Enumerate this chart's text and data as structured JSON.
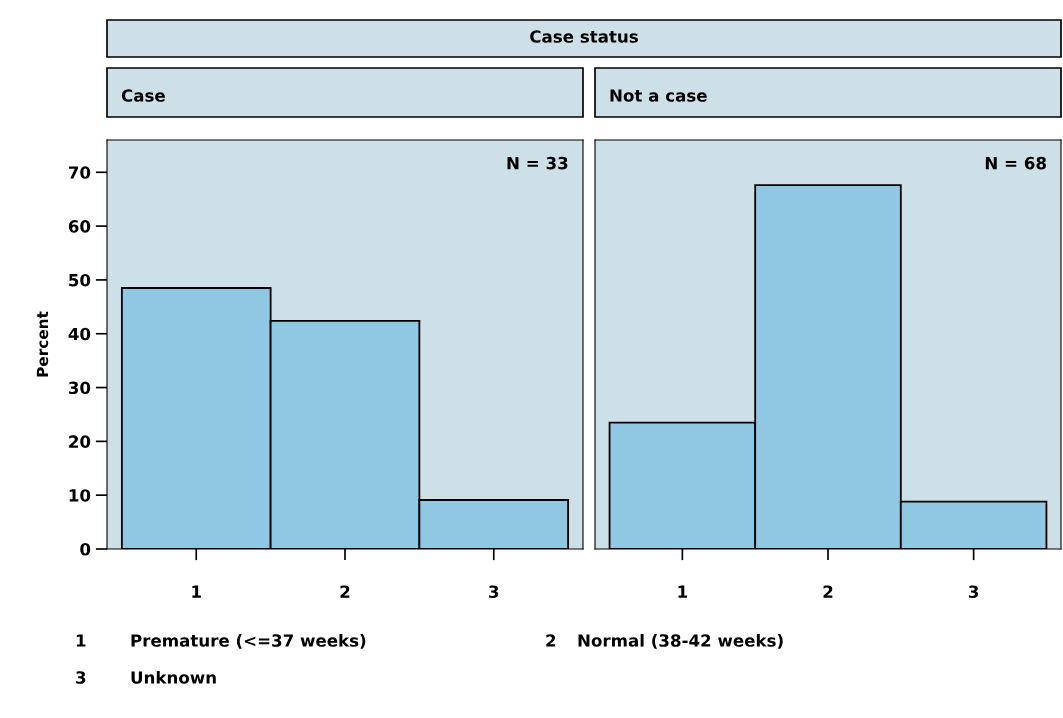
{
  "chart_data": [
    {
      "type": "bar",
      "title": "Case",
      "ylabel": "Percent",
      "categories": [
        "1",
        "2",
        "3"
      ],
      "values": [
        48.5,
        42.4,
        9.1
      ],
      "color": "#90c8e3",
      "ylim": [
        0,
        76
      ],
      "yticks": [
        0,
        10,
        20,
        30,
        40,
        50,
        60,
        70
      ],
      "grid": false,
      "annotations": [
        "N = 33",
        "Case status",
        "1",
        "Premature (<=37 weeks)",
        "2",
        "Normal (38-42 weeks)",
        "3",
        "Unknown"
      ]
    },
    {
      "type": "bar",
      "title": "Not a case",
      "categories": [
        "1",
        "2",
        "3"
      ],
      "values": [
        23.5,
        67.6,
        8.8
      ],
      "color": "#90c8e3",
      "ylim": [
        0,
        76
      ],
      "yticks": [
        0,
        10,
        20,
        30,
        40,
        50,
        60,
        70
      ],
      "grid": false,
      "tick_labels": "x",
      "annotations": [
        "N = 68"
      ]
    }
  ]
}
